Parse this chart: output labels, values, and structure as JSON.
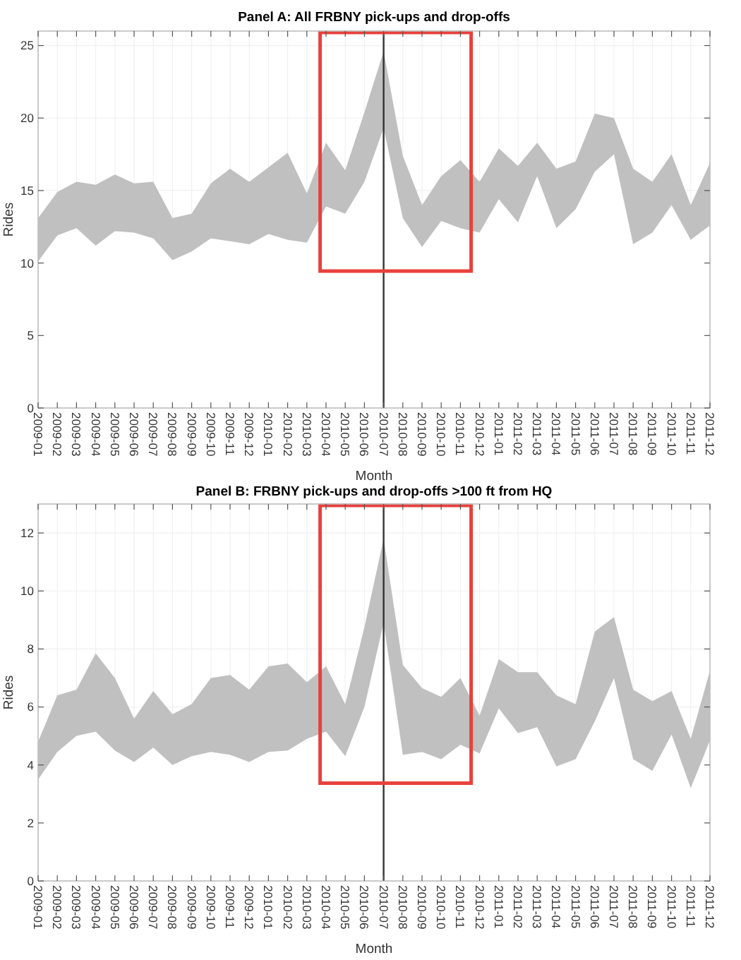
{
  "chart_data": [
    {
      "type": "area",
      "title": "Panel A: All FRBNY pick-ups and drop-offs",
      "xlabel": "Month",
      "ylabel": "Rides",
      "stacked": true,
      "categories": [
        "2009-01",
        "2009-02",
        "2009-03",
        "2009-04",
        "2009-05",
        "2009-06",
        "2009-07",
        "2009-08",
        "2009-09",
        "2009-10",
        "2009-11",
        "2009-12",
        "2010-01",
        "2010-02",
        "2010-03",
        "2010-04",
        "2010-05",
        "2010-06",
        "2010-07",
        "2010-08",
        "2010-09",
        "2010-10",
        "2010-11",
        "2010-12",
        "2011-01",
        "2011-02",
        "2011-03",
        "2011-04",
        "2011-05",
        "2011-06",
        "2011-07",
        "2011-08",
        "2011-09",
        "2011-10",
        "2011-11",
        "2011-12"
      ],
      "series": [
        {
          "color": "#ffffff",
          "values": [
            10.1,
            11.9,
            12.4,
            11.2,
            12.2,
            12.1,
            11.7,
            10.2,
            10.8,
            11.7,
            11.5,
            11.3,
            12.0,
            11.6,
            11.4,
            13.9,
            13.4,
            15.6,
            19.3,
            13.1,
            11.1,
            12.9,
            12.4,
            12.1,
            14.4,
            12.8,
            16.0,
            12.4,
            13.7,
            16.3,
            17.5,
            11.3,
            12.1,
            14.0,
            11.6,
            12.6
          ]
        },
        {
          "color": "#c0c0c0",
          "values": [
            3.0,
            3.0,
            3.2,
            4.2,
            3.9,
            3.4,
            3.9,
            2.9,
            2.6,
            3.8,
            5.0,
            4.3,
            4.6,
            6.0,
            3.4,
            4.4,
            3.0,
            4.8,
            5.3,
            4.3,
            2.9,
            3.1,
            4.7,
            3.5,
            3.5,
            3.9,
            2.3,
            4.1,
            3.3,
            4.0,
            2.5,
            5.2,
            3.5,
            3.5,
            2.4,
            4.3
          ]
        }
      ],
      "ylim": [
        0,
        26
      ],
      "yticks": [
        0,
        5,
        10,
        15,
        20,
        25
      ],
      "grid": true,
      "ref_lines": [
        {
          "axis": "x",
          "value": "2010-07",
          "color": "#333333"
        }
      ]
    },
    {
      "type": "area",
      "title": "Panel B: FRBNY pick-ups and drop-offs >100 ft from HQ",
      "xlabel": "Month",
      "ylabel": "Rides",
      "stacked": true,
      "categories": [
        "2009-01",
        "2009-02",
        "2009-03",
        "2009-04",
        "2009-05",
        "2009-06",
        "2009-07",
        "2009-08",
        "2009-09",
        "2009-10",
        "2009-11",
        "2009-12",
        "2010-01",
        "2010-02",
        "2010-03",
        "2010-04",
        "2010-05",
        "2010-06",
        "2010-07",
        "2010-08",
        "2010-09",
        "2010-10",
        "2010-11",
        "2010-12",
        "2011-01",
        "2011-02",
        "2011-03",
        "2011-04",
        "2011-05",
        "2011-06",
        "2011-07",
        "2011-08",
        "2011-09",
        "2011-10",
        "2011-11",
        "2011-12"
      ],
      "series": [
        {
          "color": "#ffffff",
          "values": [
            3.5,
            4.45,
            5.0,
            5.15,
            4.5,
            4.1,
            4.6,
            4.0,
            4.3,
            4.45,
            4.35,
            4.1,
            4.45,
            4.5,
            4.9,
            5.15,
            4.3,
            6.0,
            8.9,
            4.35,
            4.45,
            4.2,
            4.7,
            4.4,
            5.95,
            5.1,
            5.3,
            3.95,
            4.2,
            5.5,
            7.0,
            4.2,
            3.8,
            5.05,
            3.2,
            4.85
          ]
        },
        {
          "color": "#c0c0c0",
          "values": [
            1.3,
            1.95,
            1.6,
            2.7,
            2.5,
            1.5,
            1.95,
            1.75,
            1.8,
            2.55,
            2.75,
            2.5,
            2.95,
            3.0,
            1.95,
            2.25,
            1.8,
            2.75,
            2.9,
            3.1,
            2.2,
            2.15,
            2.3,
            1.3,
            1.7,
            2.1,
            1.9,
            2.45,
            1.9,
            3.1,
            2.1,
            2.4,
            2.4,
            1.5,
            1.7,
            2.4
          ]
        }
      ],
      "ylim": [
        0,
        13
      ],
      "yticks": [
        0,
        2,
        4,
        6,
        8,
        10,
        12
      ],
      "grid": true,
      "ref_lines": [
        {
          "axis": "x",
          "value": "2010-07",
          "color": "#333333"
        }
      ]
    }
  ]
}
